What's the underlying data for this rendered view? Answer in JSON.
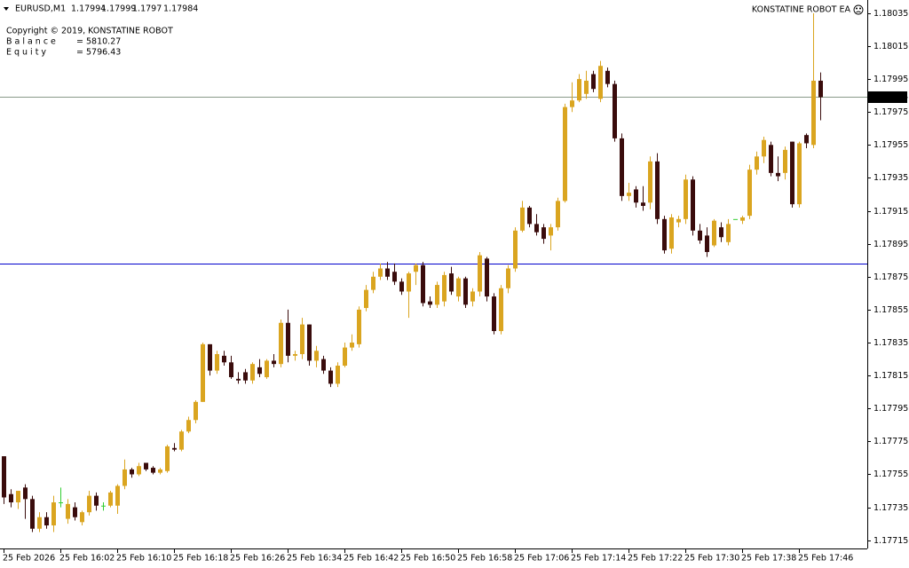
{
  "chart_data": {
    "type": "candlestick",
    "symbol": "EURUSD,M1",
    "ea_name": "KONSTATINE ROBOT EA",
    "copyright": "Copyright © 2019, KONSTATINE ROBOT",
    "account": [
      {
        "label": "Balance",
        "sep": "=",
        "value": 5810.27
      },
      {
        "label": "Equity",
        "sep": "=",
        "value": 5796.43
      }
    ],
    "categories": [
      "25 Feb 2026",
      null,
      null,
      null,
      null,
      null,
      null,
      null,
      "25 Feb 16:02",
      null,
      null,
      null,
      null,
      null,
      null,
      null,
      "25 Feb 16:10",
      null,
      null,
      null,
      null,
      null,
      null,
      null,
      "25 Feb 16:18",
      null,
      null,
      null,
      null,
      null,
      null,
      null,
      "25 Feb 16:26",
      null,
      null,
      null,
      null,
      null,
      null,
      null,
      "25 Feb 16:34",
      null,
      null,
      null,
      null,
      null,
      null,
      null,
      "25 Feb 16:42",
      null,
      null,
      null,
      null,
      null,
      null,
      null,
      "25 Feb 16:50",
      null,
      null,
      null,
      null,
      null,
      null,
      null,
      "25 Feb 16:58",
      null,
      null,
      null,
      null,
      null,
      null,
      null,
      "25 Feb 17:06",
      null,
      null,
      null,
      null,
      null,
      null,
      null,
      "25 Feb 17:14",
      null,
      null,
      null,
      null,
      null,
      null,
      null,
      "25 Feb 17:22",
      null,
      null,
      null,
      null,
      null,
      null,
      null,
      "25 Feb 17:30",
      null,
      null,
      null,
      null,
      null,
      null,
      null,
      "25 Feb 17:38",
      null,
      null,
      null,
      null,
      null,
      null,
      null,
      "25 Feb 17:46",
      null,
      null,
      null
    ],
    "open": [
      1.17766,
      1.17743,
      1.17738,
      1.17747,
      1.1774,
      1.17722,
      1.17729,
      1.17724,
      1.17738,
      1.17728,
      1.17735,
      1.17726,
      1.17732,
      1.17742,
      1.17736,
      1.17736,
      1.17736,
      1.17748,
      1.17758,
      1.17755,
      1.17762,
      1.17759,
      1.17756,
      1.17757,
      1.17771,
      1.1777,
      1.17781,
      1.17788,
      1.17799,
      1.17834,
      1.17818,
      1.17827,
      1.17823,
      1.17813,
      1.17817,
      1.17812,
      1.1782,
      1.17814,
      1.17824,
      1.17822,
      1.17847,
      1.17827,
      1.17828,
      1.17846,
      1.17824,
      1.17825,
      1.17818,
      1.1781,
      1.17821,
      1.17832,
      1.17834,
      1.17856,
      1.17867,
      1.17875,
      1.1788,
      1.17878,
      1.17872,
      1.17866,
      1.17878,
      1.17882,
      1.1786,
      1.17858,
      1.1786,
      1.17877,
      1.17863,
      1.17874,
      1.1786,
      1.17866,
      1.17886,
      1.17863,
      1.17842,
      1.17868,
      1.1788,
      1.17903,
      1.17917,
      1.17907,
      1.17905,
      1.179,
      1.17905,
      1.17921,
      1.17978,
      1.17982,
      1.17986,
      1.17998,
      1.17983,
      1.18,
      1.17992,
      1.17959,
      1.17924,
      1.17928,
      1.1792,
      1.1792,
      1.17945,
      1.1791,
      1.17892,
      1.17908,
      1.1791,
      1.17934,
      1.17903,
      1.179,
      1.17894,
      1.17905,
      1.17896,
      1.1791,
      1.17909,
      1.17912,
      1.1794,
      1.17948,
      1.17955,
      1.17938,
      1.17938,
      1.17957,
      1.17919,
      1.17961,
      1.17955,
      1.17994
    ],
    "high": [
      1.17766,
      1.17746,
      1.17745,
      1.17749,
      1.17742,
      1.17732,
      1.17732,
      1.17742,
      1.17747,
      1.1774,
      1.17738,
      1.17733,
      1.17745,
      1.17744,
      1.17738,
      1.17745,
      1.17749,
      1.17764,
      1.17759,
      1.17762,
      1.17762,
      1.1776,
      1.17759,
      1.17773,
      1.17774,
      1.17782,
      1.1779,
      1.178,
      1.17835,
      1.17834,
      1.1783,
      1.1783,
      1.17827,
      1.17817,
      1.17819,
      1.17823,
      1.17825,
      1.17825,
      1.17828,
      1.17849,
      1.17855,
      1.1783,
      1.1785,
      1.17846,
      1.17833,
      1.17827,
      1.1782,
      1.17823,
      1.17835,
      1.1784,
      1.17857,
      1.1787,
      1.17878,
      1.17883,
      1.17884,
      1.17883,
      1.17874,
      1.17878,
      1.17883,
      1.17884,
      1.17863,
      1.17872,
      1.17878,
      1.17881,
      1.17875,
      1.17875,
      1.17868,
      1.1789,
      1.17887,
      1.17865,
      1.1787,
      1.17882,
      1.17905,
      1.17921,
      1.17918,
      1.17913,
      1.17907,
      1.17907,
      1.17923,
      1.1798,
      1.17993,
      1.17998,
      1.18,
      1.18,
      1.18006,
      1.18002,
      1.17994,
      1.17962,
      1.17932,
      1.1793,
      1.1793,
      1.17948,
      1.1795,
      1.17912,
      1.17913,
      1.17912,
      1.17937,
      1.17936,
      1.17907,
      1.17905,
      1.1791,
      1.17908,
      1.1791,
      1.1791,
      1.17912,
      1.17943,
      1.17951,
      1.1796,
      1.17957,
      1.17948,
      1.17954,
      1.17957,
      1.17957,
      1.17962,
      1.18035,
      1.17999
    ],
    "low": [
      1.17737,
      1.17735,
      1.17734,
      1.17728,
      1.1772,
      1.1772,
      1.17722,
      1.1772,
      1.17735,
      1.17725,
      1.17727,
      1.17724,
      1.1773,
      1.17733,
      1.17733,
      1.17735,
      1.17731,
      1.17746,
      1.17753,
      1.17754,
      1.17757,
      1.17755,
      1.17755,
      1.17756,
      1.17769,
      1.17769,
      1.1778,
      1.17786,
      1.17799,
      1.17815,
      1.17816,
      1.17821,
      1.17813,
      1.1781,
      1.1781,
      1.1781,
      1.17814,
      1.17813,
      1.1782,
      1.1782,
      1.17823,
      1.17824,
      1.17825,
      1.17821,
      1.1782,
      1.17816,
      1.17808,
      1.17808,
      1.1782,
      1.1783,
      1.17832,
      1.17854,
      1.17865,
      1.17873,
      1.17873,
      1.1787,
      1.17864,
      1.1785,
      1.1787,
      1.17857,
      1.17856,
      1.17856,
      1.17857,
      1.17864,
      1.1786,
      1.17856,
      1.17857,
      1.17863,
      1.1786,
      1.1784,
      1.1784,
      1.17865,
      1.17878,
      1.17902,
      1.17905,
      1.179,
      1.17895,
      1.17891,
      1.17903,
      1.1792,
      1.17975,
      1.17981,
      1.17983,
      1.17987,
      1.17981,
      1.1799,
      1.17957,
      1.17921,
      1.17921,
      1.17917,
      1.17915,
      1.17916,
      1.17907,
      1.17889,
      1.17889,
      1.17905,
      1.17907,
      1.179,
      1.17895,
      1.17887,
      1.17893,
      1.17896,
      1.17894,
      1.1791,
      1.17907,
      1.1791,
      1.17937,
      1.17944,
      1.17936,
      1.17933,
      1.17934,
      1.17917,
      1.17917,
      1.17953,
      1.17953,
      1.1797
    ],
    "close": [
      1.17741,
      1.17738,
      1.17745,
      1.1774,
      1.17722,
      1.17729,
      1.17724,
      1.17738,
      1.17738,
      1.17737,
      1.17729,
      1.17732,
      1.17742,
      1.17736,
      1.17736,
      1.17744,
      1.17748,
      1.17758,
      1.17755,
      1.1776,
      1.17758,
      1.17756,
      1.17758,
      1.17772,
      1.1777,
      1.17781,
      1.17788,
      1.17799,
      1.17834,
      1.17818,
      1.17828,
      1.17823,
      1.17814,
      1.17812,
      1.17812,
      1.17822,
      1.17816,
      1.17824,
      1.17822,
      1.17847,
      1.17827,
      1.17828,
      1.17846,
      1.17824,
      1.1783,
      1.17818,
      1.1781,
      1.17821,
      1.17832,
      1.17835,
      1.17855,
      1.17867,
      1.17875,
      1.1788,
      1.17875,
      1.17872,
      1.17866,
      1.17877,
      1.17882,
      1.17859,
      1.17858,
      1.1787,
      1.17876,
      1.17866,
      1.17874,
      1.17858,
      1.17866,
      1.17888,
      1.17863,
      1.17842,
      1.17868,
      1.1788,
      1.17903,
      1.17917,
      1.17907,
      1.17902,
      1.17898,
      1.17905,
      1.17921,
      1.17978,
      1.17982,
      1.17995,
      1.17994,
      1.17989,
      1.18003,
      1.17992,
      1.17959,
      1.17924,
      1.17926,
      1.1792,
      1.17918,
      1.17945,
      1.1791,
      1.17891,
      1.17911,
      1.1791,
      1.17934,
      1.17903,
      1.17897,
      1.1789,
      1.17909,
      1.17899,
      1.17907,
      1.1791,
      1.17911,
      1.1794,
      1.17948,
      1.17958,
      1.17938,
      1.17936,
      1.17952,
      1.17919,
      1.17956,
      1.17956,
      1.17994,
      1.17984
    ],
    "colors": {
      "up": "#daa520",
      "down": "#3a0c0c",
      "doji": "#32cd32"
    },
    "level_line": {
      "value": 1.17883,
      "color": "#0000cd"
    },
    "price_line_color": "#8a9a8a",
    "ylim": [
      1.1771,
      1.18043
    ],
    "yticks": [
      1.18035,
      1.18015,
      1.17995,
      1.17975,
      1.17955,
      1.17935,
      1.17915,
      1.17895,
      1.17875,
      1.17855,
      1.17835,
      1.17815,
      1.17795,
      1.17775,
      1.17755,
      1.17735,
      1.17715
    ]
  }
}
